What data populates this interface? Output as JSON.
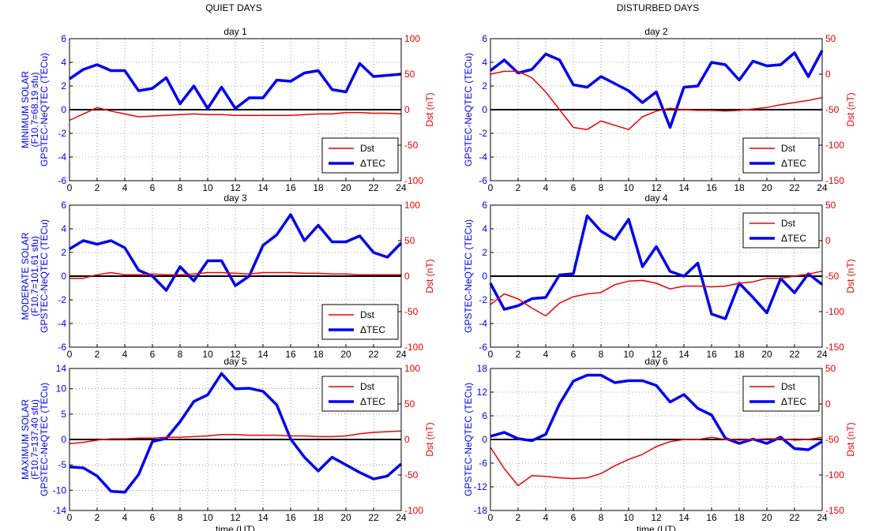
{
  "columns": [
    "QUIET DAYS",
    "DISTURBED DAYS"
  ],
  "rows": [
    {
      "ylabel": [
        "MINIMUM SOLAR",
        "(F10.7=68.19 sfu)",
        "GPSTEC-NeQTEC (TECu)"
      ]
    },
    {
      "ylabel": [
        "MODERATE SOLAR",
        "(F10.7=101.61 sfu)",
        "GPSTEC-NeQTEC (TECu)"
      ]
    },
    {
      "ylabel": [
        "MAXIMUM SOLAR",
        "(F10.7=137.40 sfu)",
        "GPSTEC-NeQTEC (TECu)"
      ]
    }
  ],
  "colors": {
    "tec": "#0000ee",
    "dst": "#ee0000",
    "zero": "#000000"
  },
  "chart_data": [
    {
      "type": "line",
      "title": "day 1",
      "row": 0,
      "col": 0,
      "ylabel": "",
      "y2label": "Dst (nT)",
      "xlabel": "",
      "xlim": [
        0,
        24
      ],
      "xticks": [
        0,
        2,
        4,
        6,
        8,
        10,
        12,
        14,
        16,
        18,
        20,
        22,
        24
      ],
      "ylim": [
        -6,
        6
      ],
      "yticks": [
        -6,
        -4,
        -2,
        0,
        2,
        4,
        6
      ],
      "y2lim": [
        -100,
        100
      ],
      "y2ticks": [
        -100,
        -50,
        0,
        50,
        100
      ],
      "legend": "bottom-right",
      "grid": true,
      "series": [
        {
          "name": "ΔTEC",
          "axis": "left",
          "x": [
            0,
            1,
            2,
            3,
            4,
            5,
            6,
            7,
            8,
            9,
            10,
            11,
            12,
            13,
            14,
            15,
            16,
            17,
            18,
            19,
            20,
            21,
            22,
            23,
            24
          ],
          "values": [
            2.6,
            3.4,
            3.8,
            3.3,
            3.3,
            1.6,
            1.8,
            2.7,
            0.5,
            2.0,
            0.1,
            1.9,
            0.1,
            1.0,
            1.0,
            2.5,
            2.4,
            3.1,
            3.3,
            1.7,
            1.5,
            3.9,
            2.8,
            2.9,
            3.0
          ]
        },
        {
          "name": "Dst",
          "axis": "right",
          "x": [
            0,
            1,
            2,
            3,
            4,
            5,
            6,
            7,
            8,
            9,
            10,
            11,
            12,
            13,
            14,
            15,
            16,
            17,
            18,
            19,
            20,
            21,
            22,
            23,
            24
          ],
          "values": [
            -15,
            -6,
            3,
            -2,
            -6,
            -10,
            -9,
            -8,
            -7,
            -6,
            -7,
            -7,
            -8,
            -8,
            -8,
            -8,
            -8,
            -7,
            -6,
            -6,
            -4,
            -4,
            -5,
            -5,
            -6
          ]
        }
      ]
    },
    {
      "type": "line",
      "title": "day 2",
      "row": 0,
      "col": 1,
      "ylabel": "",
      "y2label": "Dst (nT)",
      "xlabel": "",
      "xlim": [
        0,
        24
      ],
      "xticks": [
        0,
        2,
        4,
        6,
        8,
        10,
        12,
        14,
        16,
        18,
        20,
        22,
        24
      ],
      "ylim": [
        -6,
        6
      ],
      "yticks": [
        -6,
        -4,
        -2,
        0,
        2,
        4,
        6
      ],
      "y2lim": [
        -150,
        50
      ],
      "y2ticks": [
        -150,
        -100,
        -50,
        0,
        50
      ],
      "legend": "bottom-right",
      "grid": true,
      "series": [
        {
          "name": "ΔTEC",
          "axis": "left",
          "x": [
            0,
            1,
            2,
            3,
            4,
            5,
            6,
            7,
            8,
            9,
            10,
            11,
            12,
            13,
            14,
            15,
            16,
            17,
            18,
            19,
            20,
            21,
            22,
            23,
            24
          ],
          "values": [
            3.3,
            4.2,
            3.1,
            3.4,
            4.7,
            4.2,
            2.1,
            1.9,
            2.8,
            2.2,
            1.6,
            0.6,
            1.5,
            -1.5,
            1.9,
            2.0,
            4.0,
            3.8,
            2.5,
            4.1,
            3.7,
            3.8,
            4.8,
            2.8,
            5.0
          ]
        },
        {
          "name": "Dst",
          "axis": "right",
          "x": [
            0,
            1,
            2,
            3,
            4,
            5,
            6,
            7,
            8,
            9,
            10,
            11,
            12,
            13,
            14,
            15,
            16,
            17,
            18,
            19,
            20,
            21,
            22,
            23,
            24
          ],
          "values": [
            0,
            4,
            4,
            -5,
            -25,
            -50,
            -75,
            -78,
            -66,
            -72,
            -78,
            -60,
            -52,
            -48,
            -50,
            -51,
            -51,
            -52,
            -51,
            -49,
            -47,
            -43,
            -40,
            -37,
            -33
          ]
        }
      ]
    },
    {
      "type": "line",
      "title": "day 3",
      "row": 1,
      "col": 0,
      "ylabel": "",
      "y2label": "Dst (nT)",
      "xlabel": "",
      "xlim": [
        0,
        24
      ],
      "xticks": [
        0,
        2,
        4,
        6,
        8,
        10,
        12,
        14,
        16,
        18,
        20,
        22,
        24
      ],
      "ylim": [
        -6,
        6
      ],
      "yticks": [
        -6,
        -4,
        -2,
        0,
        2,
        4,
        6
      ],
      "y2lim": [
        -100,
        100
      ],
      "y2ticks": [
        -100,
        -50,
        0,
        50,
        100
      ],
      "legend": "bottom-right",
      "grid": true,
      "series": [
        {
          "name": "ΔTEC",
          "axis": "left",
          "x": [
            0,
            1,
            2,
            3,
            4,
            5,
            6,
            7,
            8,
            9,
            10,
            11,
            12,
            13,
            14,
            15,
            16,
            17,
            18,
            19,
            20,
            21,
            22,
            23,
            24
          ],
          "values": [
            2.3,
            3.0,
            2.7,
            3.0,
            2.4,
            0.5,
            0.0,
            -1.2,
            0.8,
            -0.4,
            1.3,
            1.3,
            -0.8,
            0.0,
            2.6,
            3.5,
            5.2,
            3.0,
            4.3,
            2.9,
            2.9,
            3.4,
            2.0,
            1.6,
            2.8
          ]
        },
        {
          "name": "Dst",
          "axis": "right",
          "x": [
            0,
            1,
            2,
            3,
            4,
            5,
            6,
            7,
            8,
            9,
            10,
            11,
            12,
            13,
            14,
            15,
            16,
            17,
            18,
            19,
            20,
            21,
            22,
            23,
            24
          ],
          "values": [
            -3,
            -3,
            2,
            5,
            2,
            2,
            3,
            2,
            2,
            3,
            5,
            5,
            4,
            3,
            5,
            5,
            5,
            4,
            4,
            3,
            3,
            2,
            2,
            2,
            2
          ]
        }
      ]
    },
    {
      "type": "line",
      "title": "day 4",
      "row": 1,
      "col": 1,
      "ylabel": "",
      "y2label": "Dst (nT)",
      "xlabel": "",
      "xlim": [
        0,
        24
      ],
      "xticks": [
        0,
        2,
        4,
        6,
        8,
        10,
        12,
        14,
        16,
        18,
        20,
        22,
        24
      ],
      "ylim": [
        -6,
        6
      ],
      "yticks": [
        -6,
        -4,
        -2,
        0,
        2,
        4,
        6
      ],
      "y2lim": [
        -150,
        50
      ],
      "y2ticks": [
        -150,
        -100,
        -50,
        0,
        50
      ],
      "legend": "top-right",
      "grid": true,
      "series": [
        {
          "name": "ΔTEC",
          "axis": "left",
          "x": [
            0,
            1,
            2,
            3,
            4,
            5,
            6,
            7,
            8,
            9,
            10,
            11,
            12,
            13,
            14,
            15,
            16,
            17,
            18,
            19,
            20,
            21,
            22,
            23,
            24
          ],
          "values": [
            -0.6,
            -2.8,
            -2.5,
            -1.9,
            -1.8,
            0.1,
            0.2,
            5.1,
            3.8,
            3.1,
            4.8,
            0.8,
            2.5,
            0.4,
            0.0,
            1.1,
            -3.2,
            -3.6,
            -0.6,
            -1.8,
            -3.1,
            -0.2,
            -1.4,
            0.2,
            -0.7
          ]
        },
        {
          "name": "Dst",
          "axis": "right",
          "x": [
            0,
            1,
            2,
            3,
            4,
            5,
            6,
            7,
            8,
            9,
            10,
            11,
            12,
            13,
            14,
            15,
            16,
            17,
            18,
            19,
            20,
            21,
            22,
            23,
            24
          ],
          "values": [
            -90,
            -75,
            -82,
            -95,
            -106,
            -88,
            -79,
            -75,
            -73,
            -62,
            -57,
            -56,
            -60,
            -68,
            -64,
            -64,
            -65,
            -64,
            -60,
            -58,
            -53,
            -53,
            -50,
            -47,
            -43
          ]
        }
      ]
    },
    {
      "type": "line",
      "title": "day 5",
      "row": 2,
      "col": 0,
      "ylabel": "",
      "y2label": "Dst (nT)",
      "xlabel": "time (UT)",
      "xlim": [
        0,
        24
      ],
      "xticks": [
        0,
        2,
        4,
        6,
        8,
        10,
        12,
        14,
        16,
        18,
        20,
        22,
        24
      ],
      "ylim": [
        -14,
        14
      ],
      "yticks": [
        -14,
        -10,
        -5,
        0,
        5,
        10,
        14
      ],
      "y2lim": [
        -100,
        100
      ],
      "y2ticks": [
        -100,
        -50,
        0,
        50,
        100
      ],
      "legend": "top-right",
      "grid": true,
      "series": [
        {
          "name": "ΔTEC",
          "axis": "left",
          "x": [
            0,
            1,
            2,
            3,
            4,
            5,
            6,
            7,
            8,
            9,
            10,
            11,
            12,
            13,
            14,
            15,
            16,
            17,
            18,
            19,
            20,
            21,
            22,
            23,
            24
          ],
          "values": [
            -5.4,
            -5.6,
            -7.2,
            -10.2,
            -10.4,
            -6.9,
            -0.4,
            0.2,
            3.5,
            7.5,
            8.8,
            13.0,
            10.0,
            10.1,
            9.5,
            6.8,
            0.1,
            -3.5,
            -6.2,
            -3.5,
            -5.0,
            -6.5,
            -7.8,
            -7.2,
            -4.8
          ]
        },
        {
          "name": "Dst",
          "axis": "right",
          "x": [
            0,
            1,
            2,
            3,
            4,
            5,
            6,
            7,
            8,
            9,
            10,
            11,
            12,
            13,
            14,
            15,
            16,
            17,
            18,
            19,
            20,
            21,
            22,
            23,
            24
          ],
          "values": [
            -6,
            -4,
            -1,
            1,
            1,
            2,
            2,
            3,
            3,
            4,
            5,
            7,
            7,
            6,
            6,
            6,
            5,
            5,
            4,
            4,
            5,
            8,
            10,
            11,
            12
          ]
        }
      ]
    },
    {
      "type": "line",
      "title": "day 6",
      "row": 2,
      "col": 1,
      "ylabel": "",
      "y2label": "Dst (nT)",
      "xlabel": "time (UT)",
      "xlim": [
        0,
        24
      ],
      "xticks": [
        0,
        2,
        4,
        6,
        8,
        10,
        12,
        14,
        16,
        18,
        20,
        22,
        24
      ],
      "ylim": [
        -18,
        18
      ],
      "yticks": [
        -18,
        -12,
        -6,
        0,
        6,
        12,
        18
      ],
      "y2lim": [
        -150,
        50
      ],
      "y2ticks": [
        -150,
        -100,
        -50,
        0,
        50
      ],
      "legend": "top-right",
      "grid": true,
      "series": [
        {
          "name": "ΔTEC",
          "axis": "left",
          "x": [
            0,
            1,
            2,
            3,
            4,
            5,
            6,
            7,
            8,
            9,
            10,
            11,
            12,
            13,
            14,
            15,
            16,
            17,
            18,
            19,
            20,
            21,
            22,
            23,
            24
          ],
          "values": [
            0.8,
            1.8,
            0.2,
            -0.3,
            1.3,
            9.0,
            14.8,
            16.3,
            16.3,
            14.4,
            14.9,
            14.9,
            13.7,
            9.5,
            11.4,
            7.9,
            6.2,
            0.3,
            -1.0,
            0.1,
            -1.0,
            0.6,
            -2.3,
            -2.6,
            -0.5
          ]
        },
        {
          "name": "Dst",
          "axis": "right",
          "x": [
            0,
            1,
            2,
            3,
            4,
            5,
            6,
            7,
            8,
            9,
            10,
            11,
            12,
            13,
            14,
            15,
            16,
            17,
            18,
            19,
            20,
            21,
            22,
            23,
            24
          ],
          "values": [
            -61,
            -91,
            -115,
            -101,
            -102,
            -104,
            -105,
            -104,
            -98,
            -87,
            -78,
            -71,
            -60,
            -53,
            -50,
            -50,
            -47,
            -50,
            -51,
            -50,
            -49,
            -49,
            -51,
            -50,
            -47
          ]
        }
      ]
    }
  ]
}
